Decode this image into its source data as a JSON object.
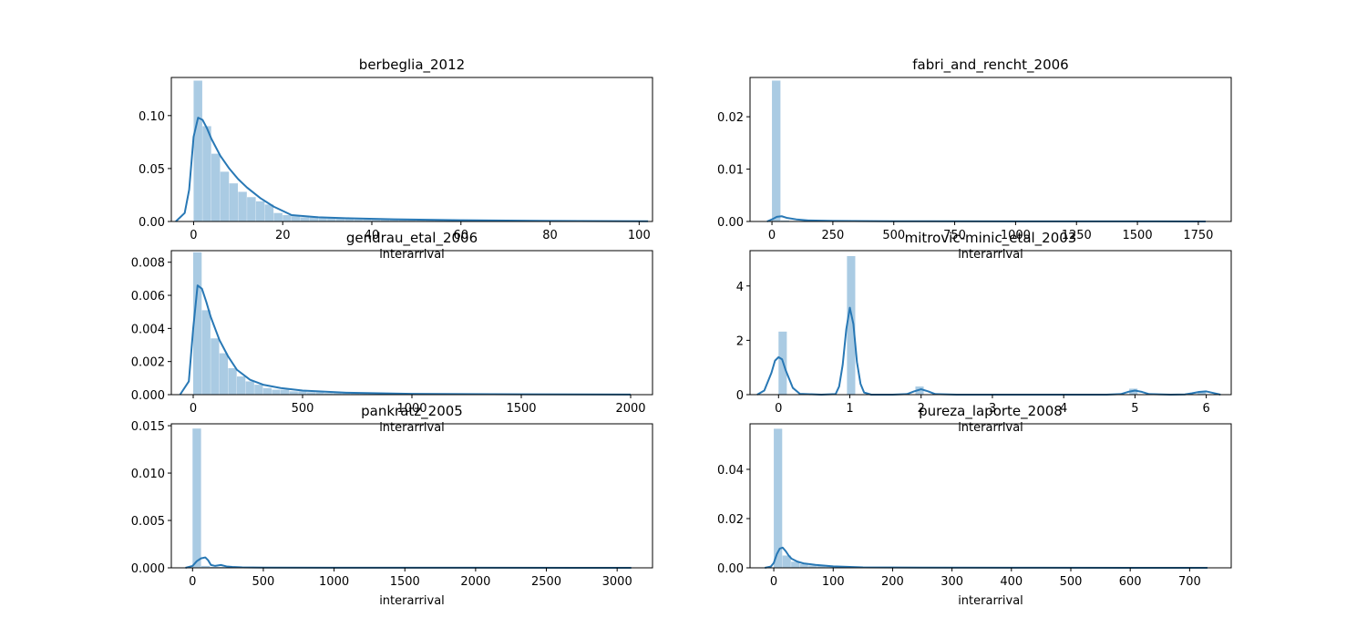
{
  "chart_data": [
    {
      "type": "bar",
      "title": "berbeglia_2012",
      "xlabel": "interarrival",
      "ylabel": "",
      "xlim": [
        -5,
        103
      ],
      "ylim": [
        0,
        0.136
      ],
      "xticks": [
        0,
        20,
        40,
        60,
        80,
        100
      ],
      "xtick_labels": [
        "0",
        "20",
        "40",
        "60",
        "80",
        "100"
      ],
      "yticks": [
        0.0,
        0.05,
        0.1
      ],
      "ytick_labels": [
        "0.00",
        "0.05",
        "0.10"
      ],
      "bin_edges": [
        0,
        2,
        4,
        6,
        8,
        10,
        12,
        14,
        16,
        18,
        20,
        22,
        24,
        26,
        28,
        30,
        32,
        34,
        36,
        38,
        40,
        42,
        44,
        46,
        48,
        50,
        52,
        54,
        56,
        58,
        60,
        62,
        64,
        66,
        68,
        70,
        72,
        74,
        76,
        78,
        80,
        82,
        84,
        86,
        88,
        90,
        92,
        94,
        96,
        98,
        100
      ],
      "hist_values": [
        0.133,
        0.09,
        0.064,
        0.047,
        0.036,
        0.028,
        0.023,
        0.019,
        0.016,
        0.008,
        0.006,
        0.005,
        0.004,
        0.004,
        0.003,
        0.003,
        0.003,
        0.003,
        0.002,
        0.002,
        0.002,
        0.002,
        0.0015,
        0.0015,
        0.0012,
        0.001,
        0.001,
        0.001,
        0.0008,
        0.0008,
        0.0007,
        0.0006,
        0.0005,
        0.0005,
        0.0004,
        0.0004,
        0.0003,
        0.0003,
        0.0003,
        0.0002,
        0.0002,
        0.0002,
        0.0002,
        0.0002,
        0.0001,
        0.0001,
        0.0001,
        0.0001,
        0.0001,
        0.0001
      ],
      "kde_x": [
        -4,
        -2,
        -1,
        0,
        1,
        2,
        3,
        4,
        6,
        8,
        10,
        12,
        15,
        18,
        22,
        28,
        35,
        45,
        60,
        80,
        102
      ],
      "kde_y": [
        0.0,
        0.008,
        0.03,
        0.08,
        0.098,
        0.096,
        0.088,
        0.078,
        0.062,
        0.05,
        0.04,
        0.032,
        0.022,
        0.014,
        0.006,
        0.004,
        0.003,
        0.002,
        0.0012,
        0.0005,
        0.0002
      ]
    },
    {
      "type": "bar",
      "title": "fabri_and_rencht_2006",
      "xlabel": "interarrival",
      "ylabel": "",
      "xlim": [
        -90,
        1885
      ],
      "ylim": [
        0,
        0.0275
      ],
      "xticks": [
        0,
        250,
        500,
        750,
        1000,
        1250,
        1500,
        1750
      ],
      "xtick_labels": [
        "0",
        "250",
        "500",
        "750",
        "1000",
        "1250",
        "1500",
        "1750"
      ],
      "yticks": [
        0.0,
        0.01,
        0.02
      ],
      "ytick_labels": [
        "0.00",
        "0.01",
        "0.02"
      ],
      "bin_edges": [
        0,
        36,
        72,
        108,
        144,
        180,
        216,
        252,
        288,
        324,
        360,
        396,
        432,
        468,
        504,
        540,
        576,
        612,
        648,
        684,
        720,
        756,
        792,
        828,
        864,
        900,
        936,
        972,
        1008,
        1044,
        1080,
        1116,
        1152,
        1188,
        1224,
        1260,
        1296,
        1332,
        1368,
        1404,
        1440,
        1476,
        1512,
        1548,
        1584,
        1620,
        1656,
        1692,
        1728,
        1764,
        1800
      ],
      "hist_values": [
        0.0269,
        0.0002,
        0.0001,
        5e-05,
        4e-05,
        3e-05,
        2e-05,
        2e-05,
        1e-05,
        1e-05,
        1e-05,
        1e-05,
        1e-05,
        1e-05,
        1e-05,
        1e-05,
        1e-05,
        1e-05,
        1e-05,
        1e-05,
        1e-05,
        1e-05,
        1e-05,
        1e-05,
        1e-05,
        1e-05,
        1e-05,
        1e-05,
        1e-05,
        1e-05,
        1e-05,
        1e-05,
        1e-05,
        1e-05,
        1e-05,
        1e-05,
        1e-05,
        1e-05,
        1e-05,
        1e-05,
        1e-05,
        1e-05,
        1e-05,
        1e-05,
        1e-05,
        1e-05,
        1e-05,
        1e-05,
        1e-05,
        1e-05
      ],
      "kde_x": [
        -20,
        0,
        20,
        40,
        60,
        100,
        150,
        250,
        500,
        1000,
        1780
      ],
      "kde_y": [
        0.0,
        0.0004,
        0.0009,
        0.001,
        0.0007,
        0.0004,
        0.0002,
        0.0001,
        4e-05,
        2e-05,
        1e-05
      ]
    },
    {
      "type": "bar",
      "title": "gendrau_etal_2006",
      "xlabel": "interarrival",
      "ylabel": "",
      "xlim": [
        -100,
        2100
      ],
      "ylim": [
        0,
        0.0087
      ],
      "xticks": [
        0,
        500,
        1000,
        1500,
        2000
      ],
      "xtick_labels": [
        "0",
        "500",
        "1000",
        "1500",
        "2000"
      ],
      "yticks": [
        0.0,
        0.002,
        0.004,
        0.006,
        0.008
      ],
      "ytick_labels": [
        "0.000",
        "0.002",
        "0.004",
        "0.006",
        "0.008"
      ],
      "bin_edges": [
        0,
        40,
        80,
        120,
        160,
        200,
        240,
        280,
        320,
        360,
        400,
        440,
        480,
        520,
        560,
        600,
        640,
        680,
        720,
        760,
        800,
        840,
        880,
        920,
        960,
        1000,
        1040,
        1080,
        1120,
        1160,
        1200,
        1240,
        1280,
        1320,
        1360,
        1400,
        1440,
        1480,
        1520,
        1560,
        1600,
        1640,
        1680,
        1720,
        1760,
        1800,
        1840,
        1880,
        1920,
        1960,
        2000
      ],
      "hist_values": [
        0.0086,
        0.0051,
        0.0034,
        0.0025,
        0.0016,
        0.0011,
        0.0008,
        0.0006,
        0.0004,
        0.0003,
        0.0003,
        0.0002,
        0.0002,
        0.00015,
        0.00015,
        0.0001,
        0.0001,
        0.0001,
        8e-05,
        8e-05,
        6e-05,
        6e-05,
        5e-05,
        5e-05,
        4e-05,
        4e-05,
        3e-05,
        3e-05,
        3e-05,
        3e-05,
        2e-05,
        2e-05,
        2e-05,
        2e-05,
        2e-05,
        2e-05,
        1e-05,
        1e-05,
        1e-05,
        1e-05,
        1e-05,
        1e-05,
        1e-05,
        1e-05,
        1e-05,
        1e-05,
        1e-05,
        1e-05,
        1e-05,
        1e-05
      ],
      "kde_x": [
        -60,
        -20,
        0,
        20,
        40,
        60,
        80,
        120,
        160,
        200,
        260,
        320,
        400,
        500,
        700,
        1000,
        1500,
        2000
      ],
      "kde_y": [
        0.0,
        0.0008,
        0.004,
        0.0066,
        0.0064,
        0.0056,
        0.0047,
        0.0033,
        0.0023,
        0.0015,
        0.0009,
        0.0006,
        0.0004,
        0.00025,
        0.00012,
        5e-05,
        2e-05,
        1e-05
      ]
    },
    {
      "type": "bar",
      "title": "mitrovic-minic_etal_2003",
      "xlabel": "interarrival",
      "ylabel": "",
      "xlim": [
        -0.4,
        6.35
      ],
      "ylim": [
        0,
        5.3
      ],
      "xticks": [
        0,
        1,
        2,
        3,
        4,
        5,
        6
      ],
      "xtick_labels": [
        "0",
        "1",
        "2",
        "3",
        "4",
        "5",
        "6"
      ],
      "yticks": [
        0,
        2,
        4
      ],
      "ytick_labels": [
        "0",
        "2",
        "4"
      ],
      "bin_edges": [
        0,
        0.12,
        0.24,
        0.36,
        0.48,
        0.6,
        0.72,
        0.84,
        0.96,
        1.08,
        1.2,
        1.32,
        1.44,
        1.56,
        1.68,
        1.8,
        1.92,
        2.04,
        2.16,
        2.28,
        2.4,
        2.52,
        2.64,
        2.76,
        2.88,
        3.0,
        3.12,
        3.24,
        3.36,
        3.48,
        3.6,
        3.72,
        3.84,
        3.96,
        4.08,
        4.2,
        4.32,
        4.44,
        4.56,
        4.68,
        4.8,
        4.92,
        5.04,
        5.16,
        5.28,
        5.4,
        5.52,
        5.64,
        5.76,
        5.88,
        6.0
      ],
      "hist_values": [
        2.32,
        0,
        0,
        0,
        0,
        0,
        0,
        0,
        5.1,
        0,
        0,
        0,
        0,
        0,
        0,
        0,
        0.3,
        0,
        0,
        0,
        0,
        0,
        0,
        0,
        0,
        0,
        0,
        0,
        0,
        0,
        0,
        0,
        0,
        0,
        0,
        0,
        0,
        0,
        0,
        0,
        0,
        0.22,
        0,
        0,
        0,
        0,
        0,
        0,
        0,
        0.12
      ],
      "kde_x": [
        -0.3,
        -0.2,
        -0.1,
        -0.05,
        0.0,
        0.05,
        0.1,
        0.2,
        0.3,
        0.6,
        0.8,
        0.85,
        0.9,
        0.95,
        1.0,
        1.05,
        1.1,
        1.15,
        1.2,
        1.3,
        1.6,
        1.8,
        1.9,
        2.0,
        2.1,
        2.2,
        2.5,
        4.6,
        4.8,
        4.9,
        5.0,
        5.1,
        5.2,
        5.5,
        5.7,
        5.8,
        5.9,
        6.0,
        6.1,
        6.2
      ],
      "kde_y": [
        0.0,
        0.15,
        0.8,
        1.25,
        1.38,
        1.3,
        0.9,
        0.25,
        0.03,
        0.0,
        0.02,
        0.3,
        1.1,
        2.4,
        3.2,
        2.6,
        1.2,
        0.4,
        0.08,
        0.0,
        0.0,
        0.02,
        0.12,
        0.2,
        0.12,
        0.02,
        0.0,
        0.0,
        0.02,
        0.1,
        0.15,
        0.1,
        0.02,
        0.0,
        0.01,
        0.05,
        0.1,
        0.12,
        0.06,
        0.0
      ]
    },
    {
      "type": "bar",
      "title": "pankratz_2005",
      "xlabel": "interarrival",
      "ylabel": "",
      "xlim": [
        -150,
        3250
      ],
      "ylim": [
        0,
        0.0152
      ],
      "xticks": [
        0,
        500,
        1000,
        1500,
        2000,
        2500,
        3000
      ],
      "xtick_labels": [
        "0",
        "500",
        "1000",
        "1500",
        "2000",
        "2500",
        "3000"
      ],
      "yticks": [
        0.0,
        0.005,
        0.01,
        0.015
      ],
      "ytick_labels": [
        "0.000",
        "0.005",
        "0.010",
        "0.015"
      ],
      "bin_edges": [
        0,
        62,
        124,
        186,
        248,
        310,
        372,
        434,
        496,
        558,
        620,
        682,
        744,
        806,
        868,
        930,
        992,
        1054,
        1116,
        1178,
        1240,
        1302,
        1364,
        1426,
        1488,
        1550,
        1612,
        1674,
        1736,
        1798,
        1860,
        1922,
        1984,
        2046,
        2108,
        2170,
        2232,
        2294,
        2356,
        2418,
        2480,
        2542,
        2604,
        2666,
        2728,
        2790,
        2852,
        2914,
        2976,
        3038,
        3100
      ],
      "hist_values": [
        0.0147,
        0.0002,
        0.0001,
        0.0001,
        5e-05,
        4e-05,
        3e-05,
        2e-05,
        2e-05,
        1e-05,
        1e-05,
        1e-05,
        1e-05,
        1e-05,
        1e-05,
        1e-05,
        1e-05,
        1e-05,
        1e-05,
        1e-05,
        1e-05,
        1e-05,
        1e-05,
        1e-05,
        1e-05,
        1e-05,
        1e-05,
        1e-05,
        1e-05,
        1e-05,
        1e-05,
        1e-05,
        1e-05,
        1e-05,
        1e-05,
        1e-05,
        1e-05,
        1e-05,
        1e-05,
        1e-05,
        1e-05,
        1e-05,
        1e-05,
        1e-05,
        1e-05,
        1e-05,
        1e-05,
        1e-05,
        1e-05,
        1e-05
      ],
      "kde_x": [
        -50,
        0,
        30,
        60,
        90,
        110,
        130,
        160,
        200,
        240,
        280,
        350,
        500,
        1000,
        2000,
        3100
      ],
      "kde_y": [
        0.0,
        0.0002,
        0.0007,
        0.001,
        0.0011,
        0.0008,
        0.0003,
        0.0002,
        0.0003,
        0.00015,
        0.0001,
        5e-05,
        3e-05,
        1e-05,
        1e-05,
        0.0
      ],
      "xlabel_visible": true
    },
    {
      "type": "bar",
      "title": "pureza_laporte_2008",
      "xlabel": "interarrival",
      "ylabel": "",
      "xlim": [
        -40,
        770
      ],
      "ylim": [
        0,
        0.0585
      ],
      "xticks": [
        0,
        100,
        200,
        300,
        400,
        500,
        600,
        700
      ],
      "xtick_labels": [
        "0",
        "100",
        "200",
        "300",
        "400",
        "500",
        "600",
        "700"
      ],
      "yticks": [
        0.0,
        0.02,
        0.04
      ],
      "ytick_labels": [
        "0.00",
        "0.02",
        "0.04"
      ],
      "bin_edges": [
        0,
        14.6,
        29.2,
        43.8,
        58.4,
        73,
        87.6,
        102.2,
        116.8,
        131.4,
        146,
        160.6,
        175.2,
        189.8,
        204.4,
        219,
        233.6,
        248.2,
        262.8,
        277.4,
        292,
        306.6,
        321.2,
        335.8,
        350.4,
        365,
        379.6,
        394.2,
        408.8,
        423.4,
        438,
        452.6,
        467.2,
        481.8,
        496.4,
        511,
        525.6,
        540.2,
        554.8,
        569.4,
        584,
        598.6,
        613.2,
        627.8,
        642.4,
        657,
        671.6,
        686.2,
        700.8,
        715.4,
        730
      ],
      "hist_values": [
        0.0565,
        0.005,
        0.0025,
        0.0015,
        0.001,
        0.0008,
        0.0006,
        0.0003,
        0.0002,
        0.0002,
        0.0001,
        0.0001,
        0.0001,
        0.0001,
        5e-05,
        5e-05,
        5e-05,
        5e-05,
        3e-05,
        3e-05,
        3e-05,
        3e-05,
        2e-05,
        2e-05,
        2e-05,
        2e-05,
        2e-05,
        2e-05,
        1e-05,
        1e-05,
        1e-05,
        1e-05,
        1e-05,
        1e-05,
        1e-05,
        1e-05,
        1e-05,
        1e-05,
        1e-05,
        1e-05,
        1e-05,
        1e-05,
        1e-05,
        1e-05,
        1e-05,
        1e-05,
        1e-05,
        1e-05,
        1e-05,
        1e-05
      ],
      "kde_x": [
        -15,
        -5,
        0,
        5,
        10,
        15,
        20,
        25,
        30,
        40,
        50,
        70,
        100,
        150,
        250,
        400,
        600,
        730
      ],
      "kde_y": [
        0.0,
        0.0005,
        0.002,
        0.0055,
        0.0078,
        0.0082,
        0.0068,
        0.005,
        0.0037,
        0.0025,
        0.0018,
        0.0012,
        0.0006,
        0.0002,
        8e-05,
        3e-05,
        1e-05,
        0.0
      ]
    }
  ]
}
